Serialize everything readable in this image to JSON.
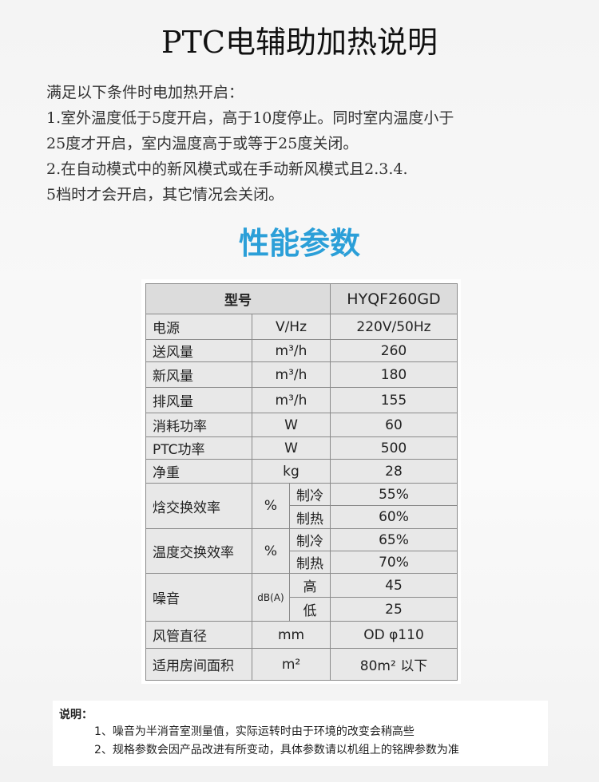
{
  "title": "PTC电辅助加热说明",
  "intro": {
    "lines": [
      "满足以下条件时电加热开启：",
      "1.室外温度低于5度开启，高于10度停止。同时室内温度小于",
      "25度才开启，室内温度高于或等于25度关闭。",
      "2.在自动模式中的新风模式或在手动新风模式且2.3.4.",
      "5档时才会开启，其它情况会关闭。"
    ]
  },
  "section_title": "性能参数",
  "table": {
    "header": [
      "型号",
      "HYQF260GD"
    ],
    "rows": [
      {
        "name": "电源",
        "unit": "V/Hz",
        "value": "220V/50Hz"
      },
      {
        "name": "送风量",
        "unit": "m³/h",
        "value": "260"
      },
      {
        "name": "新风量",
        "unit": "m³/h",
        "value": "180"
      },
      {
        "name": "排风量",
        "unit": "m³/h",
        "value": "155"
      },
      {
        "name": "消耗功率",
        "unit": "W",
        "value": "60"
      },
      {
        "name": "PTC功率",
        "unit": "W",
        "value": "500"
      },
      {
        "name": "净重",
        "unit": "kg",
        "value": "28"
      },
      {
        "name": "焓交换效率",
        "unit": "%",
        "sub": [
          {
            "label": "制冷",
            "value": "55%"
          },
          {
            "label": "制热",
            "value": "60%"
          }
        ]
      },
      {
        "name": "温度交换效率",
        "unit": "%",
        "sub": [
          {
            "label": "制冷",
            "value": "65%"
          },
          {
            "label": "制热",
            "value": "70%"
          }
        ]
      },
      {
        "name": "噪音",
        "unit": "dB(A)",
        "sub": [
          {
            "label": "高",
            "value": "45"
          },
          {
            "label": "低",
            "value": "25"
          }
        ]
      },
      {
        "name": "风管直径",
        "unit": "mm",
        "value": "OD φ110"
      },
      {
        "name": "适用房间面积",
        "unit": "m²",
        "value": "80m² 以下"
      }
    ]
  },
  "notes": {
    "label": "说明：",
    "items": [
      "1、噪音为半消音室测量值，实际运转时由于环境的改变会稍高些",
      "2、规格参数会因产品改进有所变动，具体参数请以机组上的铭牌参数为准"
    ]
  }
}
